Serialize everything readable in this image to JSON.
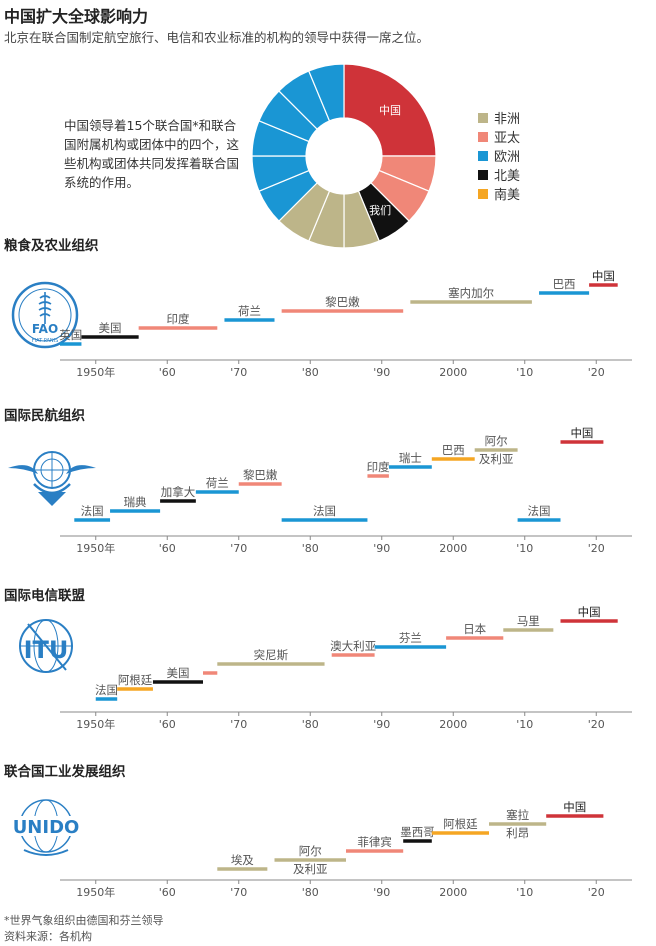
{
  "title": "中国扩大全球影响力",
  "subtitle": "北京在联合国制定航空旅行、电信和农业标准的机构的领导中获得一席之位。",
  "note": "中国领导着15个联合国*和联合国附属机构或团体中的四个，这些机构或团体共同发挥着联合国系统的作用。",
  "colors": {
    "africa": "#bdb589",
    "asia_pacific": "#f08778",
    "europe": "#1a96d4",
    "north_america": "#111111",
    "south_america": "#f5a623",
    "china": "#cf3339",
    "axis": "#888888"
  },
  "legend": [
    {
      "label": "非洲",
      "region": "africa"
    },
    {
      "label": "亚太",
      "region": "asia_pacific"
    },
    {
      "label": "欧洲",
      "region": "europe"
    },
    {
      "label": "北美",
      "region": "north_america"
    },
    {
      "label": "南美",
      "region": "south_america"
    }
  ],
  "logos": {
    "fao": {
      "name": "fao-logo",
      "text": "FAO",
      "sub": "FIAT PANIS"
    },
    "icao": {
      "name": "un-emblem-icao"
    },
    "itu": {
      "name": "itu-logo",
      "text": "ITU"
    },
    "unido": {
      "name": "unido-logo",
      "text": "UNIDO"
    }
  },
  "footnote": "*世界气象组织由德国和芬兰领导",
  "source": "资料来源：各机构",
  "chart_data": [
    {
      "type": "pie",
      "title": "",
      "slices": [
        {
          "label": "中国",
          "region": "china",
          "value": 4
        },
        {
          "label": "",
          "region": "asia_pacific",
          "value": 1
        },
        {
          "label": "",
          "region": "asia_pacific",
          "value": 1
        },
        {
          "label": "我们",
          "region": "north_america",
          "value": 1
        },
        {
          "label": "",
          "region": "africa",
          "value": 1
        },
        {
          "label": "",
          "region": "africa",
          "value": 1
        },
        {
          "label": "",
          "region": "africa",
          "value": 1
        },
        {
          "label": "",
          "region": "europe",
          "value": 1
        },
        {
          "label": "",
          "region": "europe",
          "value": 1
        },
        {
          "label": "",
          "region": "europe",
          "value": 1
        },
        {
          "label": "",
          "region": "europe",
          "value": 1
        },
        {
          "label": "",
          "region": "europe",
          "value": 1
        },
        {
          "label": "",
          "region": "europe",
          "value": 1
        }
      ]
    },
    {
      "type": "bar",
      "subtype": "timeline",
      "title": "粮食及农业组织",
      "xlim": [
        1945,
        2025
      ],
      "ticks": [
        "1950年",
        "'60",
        "'70",
        "'80",
        "'90",
        "2000",
        "'10",
        "'20"
      ],
      "tick_years": [
        1950,
        1960,
        1970,
        1980,
        1990,
        2000,
        2010,
        2020
      ],
      "leaders": [
        {
          "label": "英国",
          "region": "europe",
          "start": 1945,
          "end": 1948
        },
        {
          "label": "美国",
          "region": "north_america",
          "start": 1948,
          "end": 1956
        },
        {
          "label": "印度",
          "region": "asia_pacific",
          "start": 1956,
          "end": 1967
        },
        {
          "label": "荷兰",
          "region": "europe",
          "start": 1968,
          "end": 1975
        },
        {
          "label": "黎巴嫩",
          "region": "asia_pacific",
          "start": 1976,
          "end": 1993
        },
        {
          "label": "塞内加尔",
          "region": "africa",
          "start": 1994,
          "end": 2011
        },
        {
          "label": "巴西",
          "region": "south_america_europe",
          "start": 2012,
          "end": 2019
        },
        {
          "label": "中国",
          "region": "china",
          "start": 2019,
          "end": 2023
        }
      ]
    },
    {
      "type": "bar",
      "subtype": "timeline",
      "title": "国际民航组织",
      "xlim": [
        1945,
        2025
      ],
      "ticks": [
        "1950年",
        "'60",
        "'70",
        "'80",
        "'90",
        "2000",
        "'10",
        "'20"
      ],
      "tick_years": [
        1950,
        1960,
        1970,
        1980,
        1990,
        2000,
        2010,
        2020
      ],
      "leaders": [
        {
          "label": "法国",
          "region": "europe",
          "start": 1947,
          "end": 1952
        },
        {
          "label": "瑞典",
          "region": "europe",
          "start": 1952,
          "end": 1959
        },
        {
          "label": "加拿大",
          "region": "north_america",
          "start": 1959,
          "end": 1964
        },
        {
          "label": "荷兰",
          "region": "europe",
          "start": 1964,
          "end": 1970
        },
        {
          "label": "黎巴嫩",
          "region": "asia_pacific",
          "start": 1970,
          "end": 1976
        },
        {
          "label": "法国",
          "region": "europe",
          "start": 1976,
          "end": 1988
        },
        {
          "label": "印度",
          "region": "asia_pacific",
          "start": 1988,
          "end": 1991
        },
        {
          "label": "瑞士",
          "region": "europe",
          "start": 1991,
          "end": 1997
        },
        {
          "label": "巴西",
          "region": "south_america",
          "start": 1997,
          "end": 2003
        },
        {
          "label": "阿尔及利亚",
          "region": "africa",
          "start": 2003,
          "end": 2009
        },
        {
          "label": "法国",
          "region": "europe",
          "start": 2009,
          "end": 2015
        },
        {
          "label": "中国",
          "region": "china",
          "start": 2015,
          "end": 2021
        }
      ]
    },
    {
      "type": "bar",
      "subtype": "timeline",
      "title": "国际电信联盟",
      "xlim": [
        1945,
        2025
      ],
      "ticks": [
        "1950年",
        "'60",
        "'70",
        "'80",
        "'90",
        "2000",
        "'10",
        "'20"
      ],
      "tick_years": [
        1950,
        1960,
        1970,
        1980,
        1990,
        2000,
        2010,
        2020
      ],
      "leaders": [
        {
          "label": "法国",
          "region": "europe",
          "start": 1950,
          "end": 1953
        },
        {
          "label": "阿根廷",
          "region": "south_america",
          "start": 1953,
          "end": 1958
        },
        {
          "label": "美国",
          "region": "north_america",
          "start": 1958,
          "end": 1965
        },
        {
          "label": "",
          "region": "asia_pacific",
          "start": 1965,
          "end": 1967
        },
        {
          "label": "突尼斯",
          "region": "africa",
          "start": 1967,
          "end": 1982
        },
        {
          "label": "澳大利亚",
          "region": "asia_pacific",
          "start": 1983,
          "end": 1989
        },
        {
          "label": "芬兰",
          "region": "europe",
          "start": 1989,
          "end": 1999
        },
        {
          "label": "日本",
          "region": "asia_pacific",
          "start": 1999,
          "end": 2007
        },
        {
          "label": "马里",
          "region": "africa",
          "start": 2007,
          "end": 2014
        },
        {
          "label": "中国",
          "region": "china",
          "start": 2015,
          "end": 2023
        }
      ]
    },
    {
      "type": "bar",
      "subtype": "timeline",
      "title": "联合国工业发展组织",
      "xlim": [
        1945,
        2025
      ],
      "ticks": [
        "1950年",
        "'60",
        "'70",
        "'80",
        "'90",
        "2000",
        "'10",
        "'20"
      ],
      "tick_years": [
        1950,
        1960,
        1970,
        1980,
        1990,
        2000,
        2010,
        2020
      ],
      "leaders": [
        {
          "label": "埃及",
          "region": "africa",
          "start": 1967,
          "end": 1974
        },
        {
          "label": "阿尔及利亚",
          "region": "africa",
          "start": 1975,
          "end": 1985
        },
        {
          "label": "菲律宾",
          "region": "asia_pacific",
          "start": 1985,
          "end": 1993
        },
        {
          "label": "墨西哥",
          "region": "north_america",
          "start": 1993,
          "end": 1997
        },
        {
          "label": "阿根廷",
          "region": "south_america",
          "start": 1997,
          "end": 2005
        },
        {
          "label": "塞拉利昂",
          "region": "africa",
          "start": 2005,
          "end": 2013
        },
        {
          "label": "中国",
          "region": "china",
          "start": 2013,
          "end": 2021
        }
      ]
    }
  ]
}
